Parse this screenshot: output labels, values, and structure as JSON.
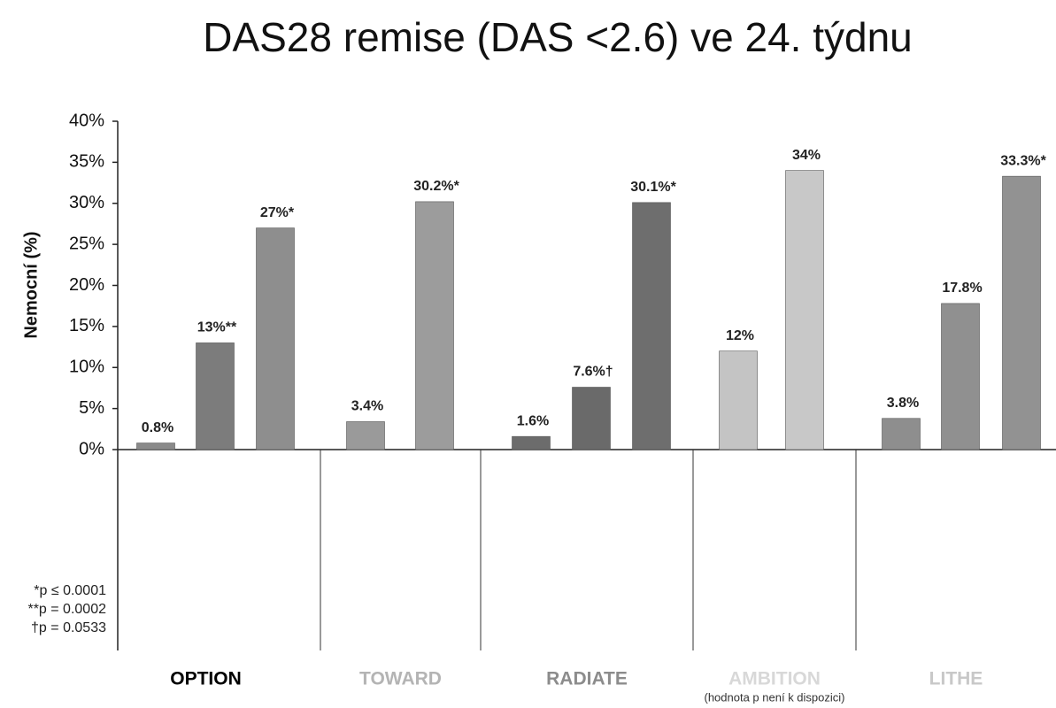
{
  "chart_data": {
    "type": "bar",
    "title": "DAS28 remise  (DAS <2.6) ve 24. týdnu",
    "y_label": "Nemocní (%)",
    "ylim": [
      0,
      40
    ],
    "yticks": [
      {
        "value": 0,
        "label": "0%"
      },
      {
        "value": 5,
        "label": "5%"
      },
      {
        "value": 10,
        "label": "10%"
      },
      {
        "value": 15,
        "label": "15%"
      },
      {
        "value": 20,
        "label": "20%"
      },
      {
        "value": 25,
        "label": "25%"
      },
      {
        "value": 30,
        "label": "30%"
      },
      {
        "value": 35,
        "label": "35%"
      },
      {
        "value": 40,
        "label": "40%"
      }
    ],
    "groups": [
      {
        "name": "OPTION",
        "label_color": "#000000",
        "bars": [
          {
            "value": 0.8,
            "value_label": "0.8%",
            "color": "#8a8a8a"
          },
          {
            "value": 13,
            "value_label": "13%**",
            "color": "#7c7c7c"
          },
          {
            "value": 27,
            "value_label": "27%*",
            "color": "#8e8e8e"
          }
        ]
      },
      {
        "name": "TOWARD",
        "label_color": "#b4b4b4",
        "bars": [
          {
            "value": 3.4,
            "value_label": "3.4%",
            "color": "#9a9a9a"
          },
          {
            "value": 30.2,
            "value_label": "30.2%*",
            "color": "#9c9c9c"
          }
        ]
      },
      {
        "name": "RADIATE",
        "label_color": "#8c8c8c",
        "bars": [
          {
            "value": 1.6,
            "value_label": "1.6%",
            "color": "#6c6c6c"
          },
          {
            "value": 7.6,
            "value_label": "7.6%†",
            "color": "#6a6a6a"
          },
          {
            "value": 30.1,
            "value_label": "30.1%*",
            "color": "#6e6e6e"
          }
        ]
      },
      {
        "name": "AMBITION",
        "note": "(hodnota p není k dispozici)",
        "label_color": "#d8d8d8",
        "bars": [
          {
            "value": 12,
            "value_label": "12%",
            "color": "#c4c4c4"
          },
          {
            "value": 34,
            "value_label": "34%",
            "color": "#c8c8c8"
          }
        ]
      },
      {
        "name": "LITHE",
        "label_color": "#c8c8c8",
        "bars": [
          {
            "value": 3.8,
            "value_label": "3.8%",
            "color": "#8e8e8e"
          },
          {
            "value": 17.8,
            "value_label": "17.8%",
            "color": "#909090"
          },
          {
            "value": 33.3,
            "value_label": "33.3%*",
            "color": "#929292"
          }
        ]
      }
    ],
    "footnotes": [
      "*p ≤ 0.0001",
      "**p = 0.0002",
      "†p = 0.0533"
    ]
  }
}
